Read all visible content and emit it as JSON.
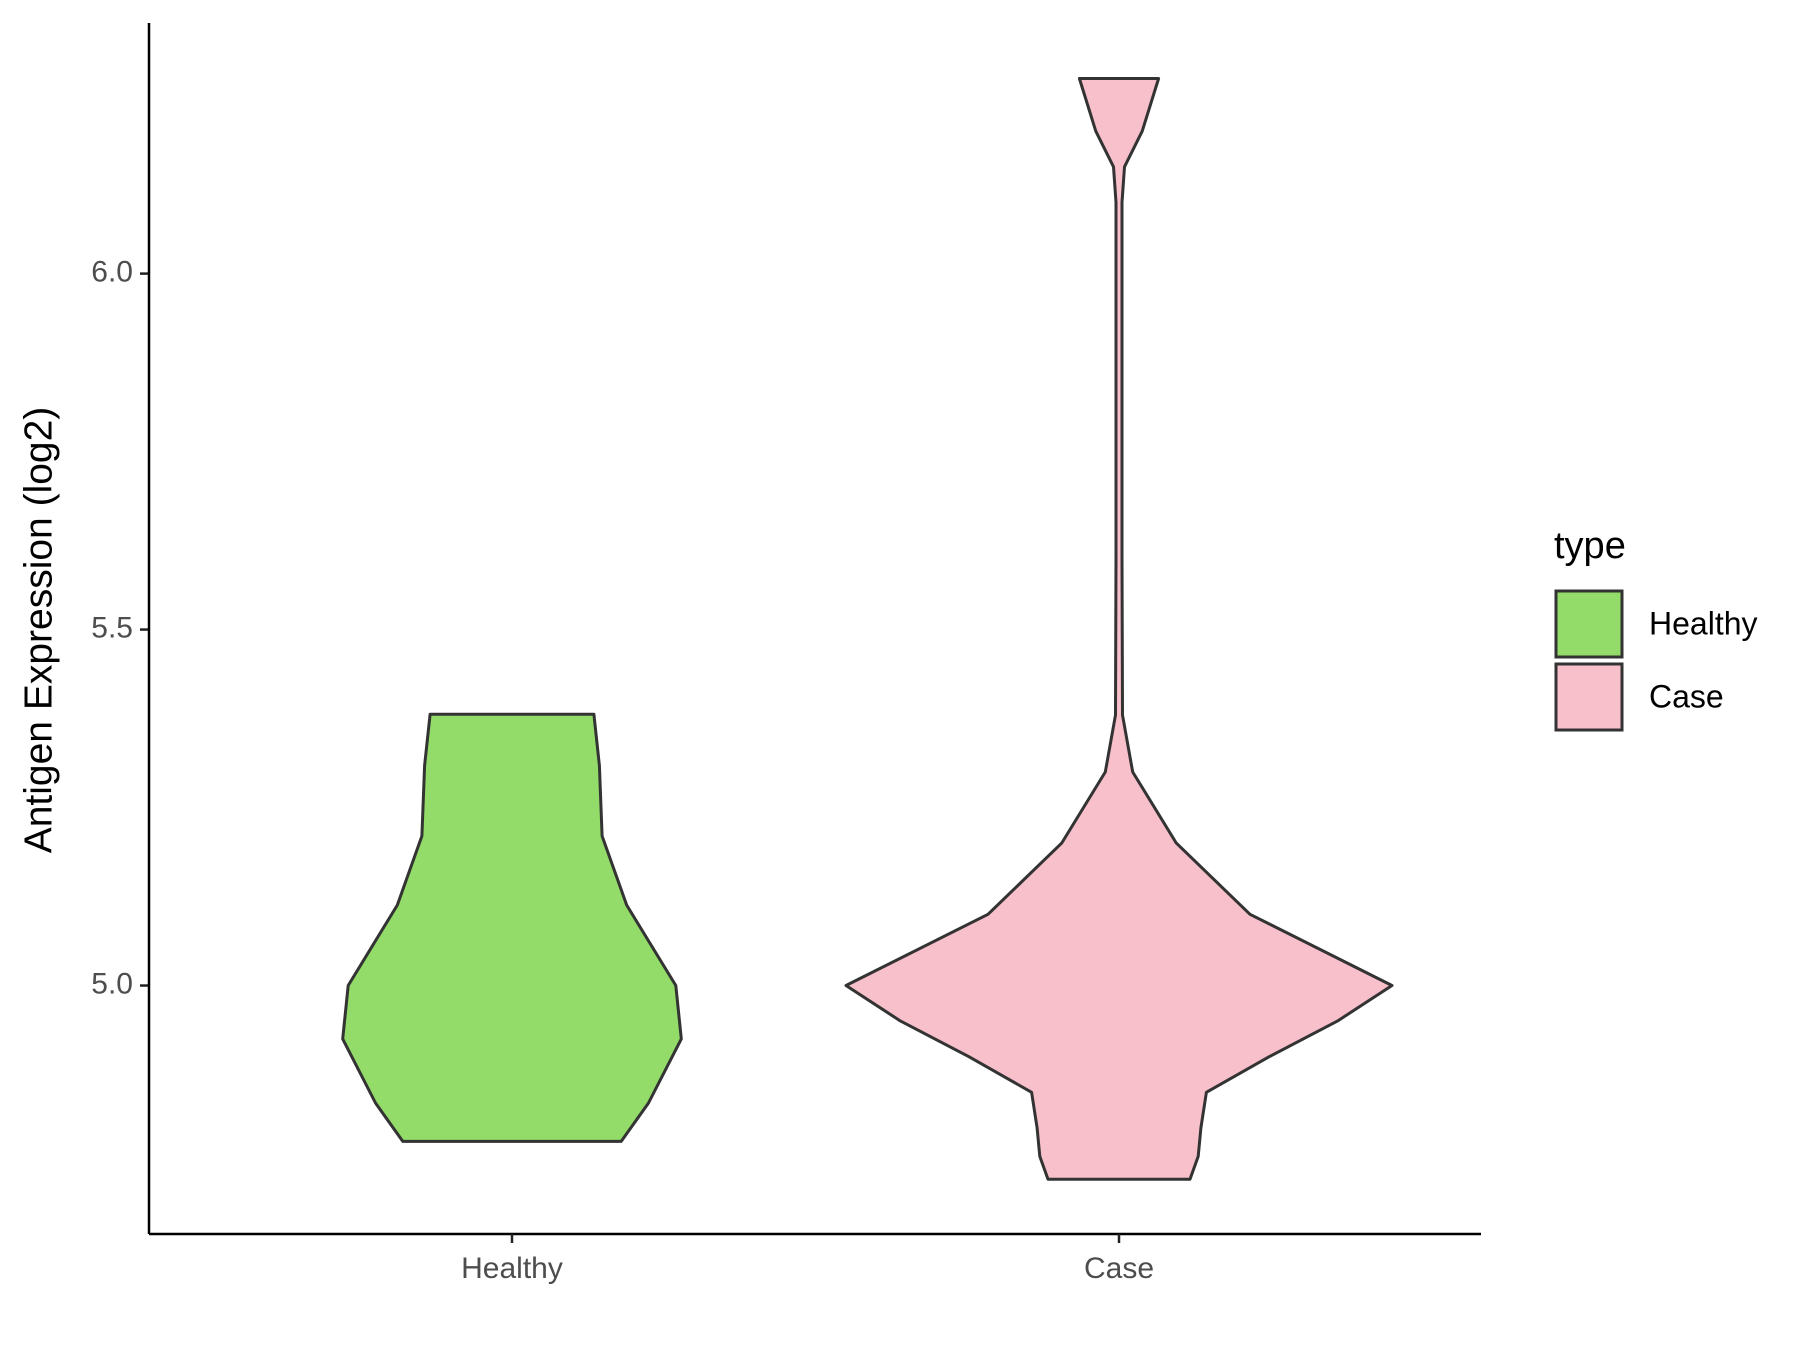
{
  "chart_data": {
    "type": "violin",
    "y_label": "Antigen Expression (log2)",
    "categories": [
      "Healthy",
      "Case"
    ],
    "ylim": [
      4.651,
      6.352
    ],
    "yticks": [
      {
        "value": 5,
        "label": "5.0"
      },
      5.5,
      {
        "value": 6,
        "label": "6.0"
      }
    ],
    "legend_title": "type",
    "legend": "right",
    "series": [
      {
        "name": "Healthy",
        "color": "#93dc6a",
        "y": [
          4.781,
          4.835,
          4.925,
          5.0,
          5.113,
          5.21,
          5.309,
          5.381
        ],
        "width": [
          0.4,
          0.5,
          0.62,
          0.6,
          0.42,
          0.33,
          0.32,
          0.3
        ]
      },
      {
        "name": "Case",
        "color": "#f8c0cb",
        "y": [
          4.728,
          4.76,
          4.8,
          4.85,
          4.9,
          4.95,
          5.0,
          5.1,
          5.2,
          5.3,
          5.38,
          5.6,
          6.1,
          6.15,
          6.2,
          6.274
        ],
        "width": [
          0.26,
          0.29,
          0.3,
          0.32,
          0.55,
          0.8,
          1.0,
          0.48,
          0.21,
          0.05,
          0.013,
          0.011,
          0.011,
          0.02,
          0.085,
          0.145
        ]
      }
    ]
  }
}
